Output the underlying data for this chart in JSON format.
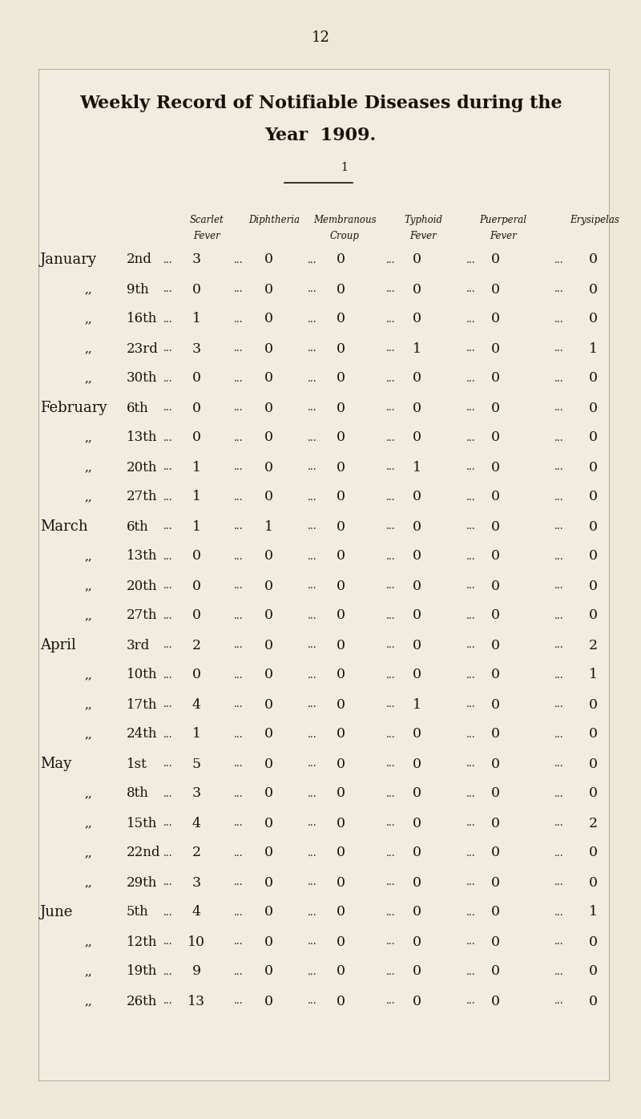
{
  "page_number": "12",
  "title_line1": "Weekly Record of Notifiable Diseases during the",
  "title_line2": "Year  1909.",
  "bg_color": "#ede8d8",
  "box_color": "#f0ece0",
  "text_color": "#1a1008",
  "rows": [
    [
      "January",
      "2nd",
      3,
      0,
      0,
      0,
      0,
      0
    ],
    [
      ",,",
      "9th",
      0,
      0,
      0,
      0,
      0,
      0
    ],
    [
      ",,",
      "16th",
      1,
      0,
      0,
      0,
      0,
      0
    ],
    [
      ",,",
      "23rd",
      3,
      0,
      0,
      1,
      0,
      1
    ],
    [
      ",,",
      "30th",
      0,
      0,
      0,
      0,
      0,
      0
    ],
    [
      "February",
      "6th",
      0,
      0,
      0,
      0,
      0,
      0
    ],
    [
      ",,",
      "13th",
      0,
      0,
      0,
      0,
      0,
      0
    ],
    [
      ",,",
      "20th",
      1,
      0,
      0,
      1,
      0,
      0
    ],
    [
      ",,",
      "27th",
      1,
      0,
      0,
      0,
      0,
      0
    ],
    [
      "March",
      "6th",
      1,
      1,
      0,
      0,
      0,
      0
    ],
    [
      ",,",
      "13th",
      0,
      0,
      0,
      0,
      0,
      0
    ],
    [
      ",,",
      "20th",
      0,
      0,
      0,
      0,
      0,
      0
    ],
    [
      ",,",
      "27th",
      0,
      0,
      0,
      0,
      0,
      0
    ],
    [
      "April",
      "3rd",
      2,
      0,
      0,
      0,
      0,
      2
    ],
    [
      ",,",
      "10th",
      0,
      0,
      0,
      0,
      0,
      1
    ],
    [
      ",,",
      "17th",
      4,
      0,
      0,
      1,
      0,
      0
    ],
    [
      ",,",
      "24th",
      1,
      0,
      0,
      0,
      0,
      0
    ],
    [
      "May",
      "1st",
      5,
      0,
      0,
      0,
      0,
      0
    ],
    [
      ",,",
      "8th",
      3,
      0,
      0,
      0,
      0,
      0
    ],
    [
      ",,",
      "15th",
      4,
      0,
      0,
      0,
      0,
      2
    ],
    [
      ",,",
      "22nd",
      2,
      0,
      0,
      0,
      0,
      0
    ],
    [
      ",,",
      "29th",
      3,
      0,
      0,
      0,
      0,
      0
    ],
    [
      "June",
      "5th",
      4,
      0,
      0,
      0,
      0,
      1
    ],
    [
      ",,",
      "12th",
      10,
      0,
      0,
      0,
      0,
      0
    ],
    [
      ",,",
      "19th",
      9,
      0,
      0,
      0,
      0,
      0
    ],
    [
      ",,",
      "26th",
      13,
      0,
      0,
      0,
      0,
      0
    ]
  ],
  "col_headers_line1": [
    "Scarlet",
    "Diphtheria",
    "Membranous",
    "Typhoid",
    "Puerperal",
    "Erysipelas"
  ],
  "col_headers_line2": [
    "Fever",
    "",
    "Croup",
    "Fever",
    "Fever",
    ""
  ]
}
